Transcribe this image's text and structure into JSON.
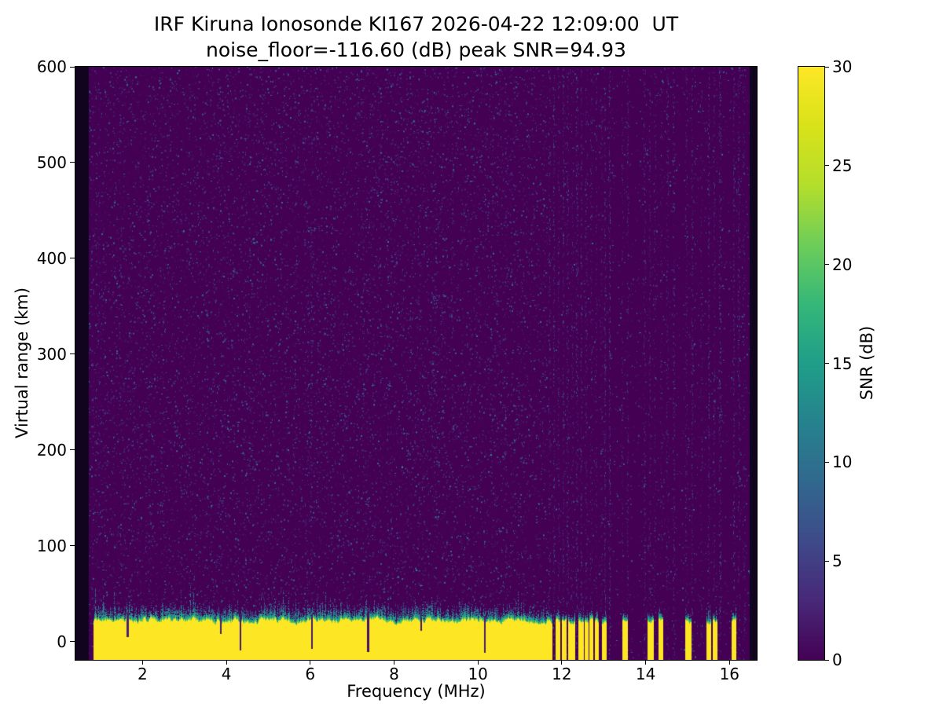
{
  "figure": {
    "title": "IRF Kiruna Ionosonde KI167 2026-04-22 12:09:00  UT",
    "subtitle": "noise_floor=-116.60 (dB) peak SNR=94.93",
    "station_code": "KI167",
    "timestamp_ut": "2026-04-22 12:09:00",
    "noise_floor_db": -116.6,
    "peak_snr_db": 94.93
  },
  "chart_data": {
    "type": "heatmap",
    "title": "IRF Kiruna Ionosonde KI167 2026-04-22 12:09:00  UT",
    "subtitle": "noise_floor=-116.60 (dB) peak SNR=94.93",
    "xlabel": "Frequency (MHz)",
    "ylabel": "Virtual range (km)",
    "colorbar_label": "SNR (dB)",
    "colormap": "viridis",
    "grid": false,
    "x_range": [
      0.4,
      16.65
    ],
    "y_range": [
      -19,
      600
    ],
    "value_range": [
      0,
      30
    ],
    "x_ticks": [
      2,
      4,
      6,
      8,
      10,
      12,
      14,
      16
    ],
    "y_ticks": [
      0,
      100,
      200,
      300,
      400,
      500,
      600
    ],
    "colorbar_ticks": [
      0,
      5,
      10,
      15,
      20,
      25,
      30
    ],
    "data_extent_mhz": [
      0.72,
      16.48
    ],
    "background_snr_db": 0,
    "noise_speckle": {
      "density": 0.085,
      "max_snr_db": 11
    },
    "ground_echo": {
      "snr_db": 30,
      "band_bottom_km": -19,
      "band_top_km_range": [
        15,
        29
      ],
      "transition_top_km_range": [
        30,
        50
      ],
      "continuous_mhz": [
        0.84,
        11.62
      ],
      "segments_mhz": [
        [
          11.65,
          11.76
        ],
        [
          11.85,
          11.95
        ],
        [
          12.0,
          12.1
        ],
        [
          12.16,
          12.3
        ],
        [
          12.4,
          12.5
        ],
        [
          12.55,
          12.62
        ],
        [
          12.66,
          12.73
        ],
        [
          12.78,
          12.86
        ],
        [
          12.95,
          13.06
        ],
        [
          13.45,
          13.56
        ],
        [
          14.05,
          14.18
        ],
        [
          14.3,
          14.4
        ],
        [
          14.95,
          15.08
        ],
        [
          15.45,
          15.55
        ],
        [
          15.6,
          15.7
        ],
        [
          16.05,
          16.15
        ]
      ],
      "notches_mhz": [
        1.62,
        3.85,
        4.32,
        6.02,
        7.35,
        8.62,
        10.15
      ]
    },
    "rfi_stripes_mhz": [
      11.68,
      11.8,
      11.9,
      12.02,
      12.12,
      12.22,
      12.34,
      12.45,
      12.57,
      12.68,
      12.8,
      12.92,
      13.02,
      13.12,
      13.42,
      13.55,
      13.95,
      14.08,
      14.2,
      14.35,
      14.5,
      14.65,
      14.95,
      15.1,
      15.3,
      15.48,
      15.62,
      15.75,
      16.08,
      16.2,
      16.32
    ]
  },
  "colors": {
    "viridis_min": "#440154",
    "viridis_max": "#fde725",
    "no_data": "#10041f",
    "axes": "#000000",
    "text": "#000000",
    "figure_background": "#ffffff"
  }
}
